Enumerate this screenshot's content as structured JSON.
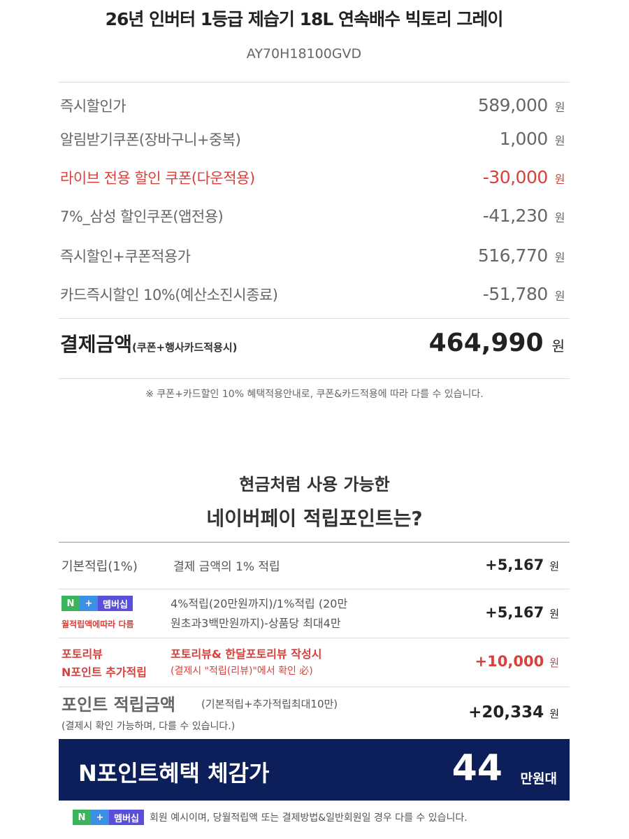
{
  "title": "26년 인버터 1등급 제습기 18L 연속배수 빅토리 그레이",
  "model": "AY70H18100GVD",
  "price_rows": [
    {
      "label": "즉시할인가",
      "value": "589,000",
      "unit": "원"
    },
    {
      "label": "알림받기쿠폰(장바구니+중복)",
      "value": "1,000",
      "unit": "원"
    },
    {
      "label": "라이브 전용 할인 쿠폰(다운적용)",
      "value": "-30,000",
      "unit": "원"
    },
    {
      "label": "7%_삼성 할인쿠폰(앱전용)",
      "value": "-41,230",
      "unit": "원"
    },
    {
      "label": "즉시할인+쿠폰적용가",
      "value": "516,770",
      "unit": "원"
    },
    {
      "label": "카드즉시할인 10%(예산소진시종료)",
      "value": "-51,780",
      "unit": "원"
    }
  ],
  "total": {
    "label": "결제금액",
    "sub": "(쿠폰+행사카드적용시)",
    "value": "464,990",
    "unit": "원"
  },
  "notice": "※ 쿠폰+카드할인 10% 혜택적용안내로, 쿠폰&카드적용에 따라 다를 수 있습니다.",
  "points": {
    "heading1": "현금처럼 사용 가능한",
    "heading2": "네이버페이 적립포인트는?",
    "basic": {
      "label": "기본적립(1%)",
      "desc": "결제 금액의 1% 적립",
      "value": "+5,167",
      "unit": "원"
    },
    "membership": {
      "badge_n": "N",
      "badge_plus": "+",
      "badge_text": "멤버십",
      "note": "월적립액에따라 다름",
      "desc1": "4%적립(20만원까지)/1%적립 (20만",
      "desc2": "원초과3백만원까지)-상품당 최대4만",
      "value": "+5,167",
      "unit": "원"
    },
    "review": {
      "label1": "포토리뷰",
      "label2": "N포인트 추가적립",
      "desc1": "포토리뷰& 한달포토리뷰 작성시",
      "desc2": "(결제시 \"적립(리뷰)\"에서 확인 必)",
      "value": "+10,000",
      "unit": "원"
    },
    "sum": {
      "label": "포인트 적립금액",
      "sub": "(기본적립+추가적립최대10만)",
      "note": "(결제시 확인 가능하며, 다를 수 있습니다.)",
      "value": "+20,334",
      "unit": "원"
    }
  },
  "banner": {
    "label": "N포인트혜택 체감가",
    "value": "44",
    "unit": "만원대",
    "bg": "#0c1f5a"
  },
  "footnote": {
    "badge_n": "N",
    "badge_plus": "+",
    "badge_text": "멤버십",
    "text": "회원 예시이며, 당월적립액 또는 결제방법&일반회원일 경우 다를 수 있습니다."
  }
}
